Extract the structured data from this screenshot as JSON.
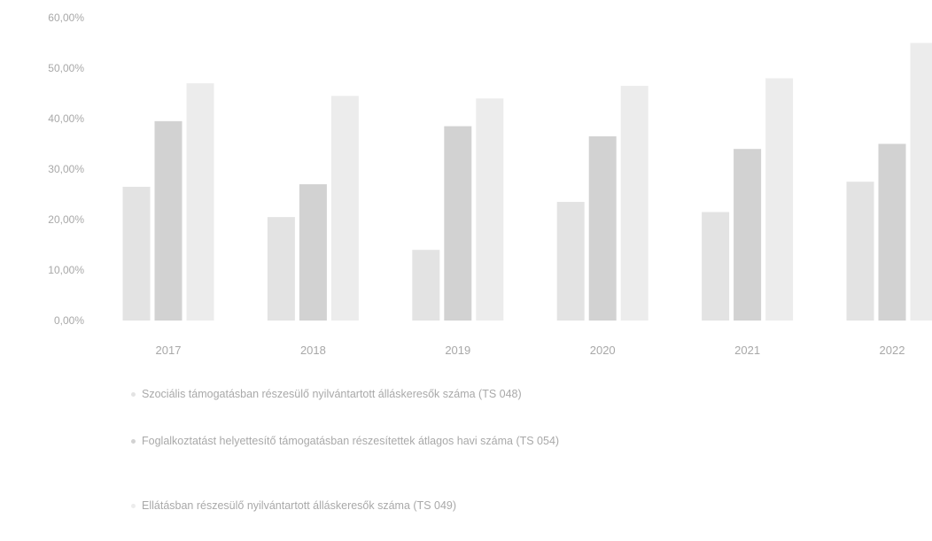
{
  "chart_data": {
    "type": "bar",
    "categories": [
      "2017",
      "2018",
      "2019",
      "2020",
      "2021",
      "2022"
    ],
    "series": [
      {
        "name": "Szociális támogatásban részesülő nyilvántartott álláskeresők száma (TS 048)",
        "color": "#e3e3e3",
        "values": [
          26.5,
          20.5,
          14,
          23.5,
          21.5,
          27.5
        ]
      },
      {
        "name": "Foglalkoztatást helyettesítő támogatásban részesítettek átlagos havi száma (TS 054)",
        "color": "#d2d2d2",
        "values": [
          39.5,
          27,
          38.5,
          36.5,
          34,
          35
        ]
      },
      {
        "name": "Ellátásban részesülő nyilvántartott álláskeresők száma (TS 049)",
        "color": "#ececec",
        "values": [
          47,
          44.5,
          44,
          46.5,
          48,
          55
        ]
      }
    ],
    "y_ticks": [
      "0,00%",
      "10,00%",
      "20,00%",
      "30,00%",
      "40,00%",
      "50,00%",
      "60,00%"
    ],
    "ylim": [
      0,
      60
    ],
    "grid": false,
    "legend_position": "bottom"
  }
}
